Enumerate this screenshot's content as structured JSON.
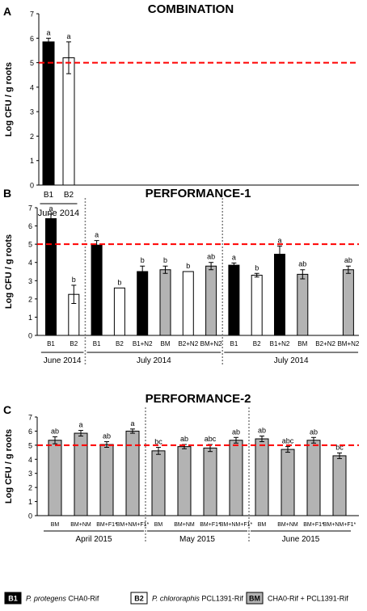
{
  "colors": {
    "B1": "#000000",
    "B2": "#ffffff",
    "BM": "#b3b3b3",
    "threshold": "#ff0000",
    "divider": "#808080"
  },
  "legend": [
    {
      "code": "B1",
      "species": "P. protegens",
      "strain": "CHA0-Rif"
    },
    {
      "code": "B2",
      "species": "P. chlororaphis",
      "strain": "PCL1391-Rif"
    },
    {
      "code": "BM",
      "species": "",
      "strain": "CHA0-Rif + PCL1391-Rif"
    }
  ],
  "chart_data": [
    {
      "panel": "A",
      "type": "bar",
      "title": "COMBINATION",
      "ylabel": "Log CFU / g roots",
      "ylim": [
        0,
        7
      ],
      "yticks": [
        "0",
        "1",
        "2",
        "3",
        "4",
        "5",
        "6",
        "7"
      ],
      "threshold": 5,
      "categories": [
        "B1",
        "B2"
      ],
      "fills": [
        "B1",
        "B2"
      ],
      "values": [
        5.85,
        5.2
      ],
      "errors": [
        0.15,
        0.65
      ],
      "letters": [
        "a",
        "a"
      ],
      "groups": [
        {
          "label": "June 2014",
          "from": 0,
          "to": 1
        }
      ],
      "dividers": []
    },
    {
      "panel": "B",
      "type": "bar",
      "title": "PERFORMANCE-1",
      "ylabel": "Log CFU / g roots",
      "ylim": [
        0,
        7
      ],
      "yticks": [
        "0",
        "1",
        "2",
        "3",
        "4",
        "5",
        "6",
        "7"
      ],
      "threshold": 5,
      "categories": [
        "B1",
        "B2",
        "B1",
        "B2",
        "B1+N2",
        "BM",
        "B2+N2",
        "BM+N2",
        "B1",
        "B2",
        "B1+N2",
        "BM",
        "B2+N2",
        "BM+N2"
      ],
      "fills": [
        "B1",
        "B2",
        "B1",
        "B2",
        "B1",
        "BM",
        "B2",
        "BM",
        "B1",
        "B2",
        "B1",
        "BM",
        "B2",
        "BM"
      ],
      "values": [
        6.4,
        2.25,
        4.95,
        2.6,
        3.5,
        3.6,
        3.5,
        3.8,
        3.85,
        3.3,
        4.45,
        3.35,
        null,
        3.6
      ],
      "errors": [
        0.25,
        0.5,
        0.25,
        0.0,
        0.3,
        0.2,
        0.0,
        0.2,
        0.12,
        0.1,
        0.45,
        0.25,
        null,
        0.2
      ],
      "letters": [
        "a",
        "b",
        "a",
        "b",
        "b",
        "b",
        "b",
        "ab",
        "a",
        "b",
        "a",
        "ab",
        "",
        "ab"
      ],
      "groups": [
        {
          "label": "June 2014",
          "from": 0,
          "to": 1
        },
        {
          "label": "July 2014",
          "from": 2,
          "to": 7
        },
        {
          "label": "July 2014",
          "from": 8,
          "to": 13
        }
      ],
      "dividers": [
        1.5,
        7.5
      ]
    },
    {
      "panel": "C",
      "type": "bar",
      "title": "PERFORMANCE-2",
      "ylabel": "Log CFU / g roots",
      "ylim": [
        0,
        7
      ],
      "yticks": [
        "0",
        "1",
        "2",
        "3",
        "4",
        "5",
        "6",
        "7"
      ],
      "threshold": 5,
      "categories": [
        "BM",
        "BM+NM",
        "BM+F1*",
        "BM+NM+F1*",
        "BM",
        "BM+NM",
        "BM+F1*",
        "BM+NM+F1*",
        "BM",
        "BM+NM",
        "BM+F1*",
        "BM+NM+F1*"
      ],
      "fills": [
        "BM",
        "BM",
        "BM",
        "BM",
        "BM",
        "BM",
        "BM",
        "BM",
        "BM",
        "BM",
        "BM",
        "BM"
      ],
      "values": [
        5.35,
        5.85,
        5.05,
        6.0,
        4.6,
        4.9,
        4.8,
        5.35,
        5.45,
        4.7,
        5.35,
        4.25
      ],
      "errors": [
        0.25,
        0.2,
        0.2,
        0.15,
        0.25,
        0.15,
        0.25,
        0.2,
        0.2,
        0.2,
        0.2,
        0.2
      ],
      "letters": [
        "ab",
        "a",
        "ab",
        "a",
        "bc",
        "ab",
        "abc",
        "ab",
        "ab",
        "abc",
        "ab",
        "bc"
      ],
      "groups": [
        {
          "label": "April 2015",
          "from": 0,
          "to": 3
        },
        {
          "label": "May 2015",
          "from": 4,
          "to": 7
        },
        {
          "label": "June 2015",
          "from": 8,
          "to": 11
        }
      ],
      "dividers": [
        3.5,
        7.5
      ]
    }
  ]
}
